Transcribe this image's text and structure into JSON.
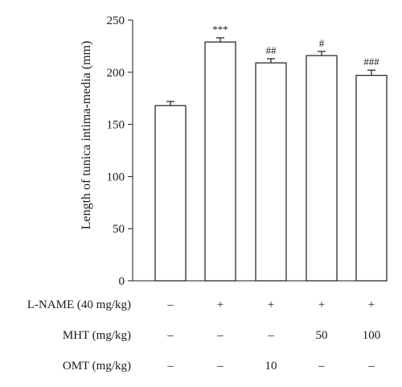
{
  "chart_data": {
    "type": "bar",
    "ylabel": "Length of tunica intima-media (mm)",
    "ylim": [
      0,
      250
    ],
    "yticks": [
      0,
      50,
      100,
      150,
      200,
      250
    ],
    "values": [
      168,
      229,
      209,
      216,
      197
    ],
    "errors": [
      4,
      4,
      4,
      4,
      5
    ],
    "significance": [
      "",
      "***",
      "##",
      "#",
      "###"
    ],
    "bar_fill": "#ffffff",
    "bar_stroke": "#1a1a1a",
    "treatment_table": [
      {
        "label": "L-NAME (40 mg/kg)",
        "values": [
          "–",
          "+",
          "+",
          "+",
          "+"
        ]
      },
      {
        "label": "MHT (mg/kg)",
        "values": [
          "–",
          "–",
          "–",
          "50",
          "100"
        ]
      },
      {
        "label": "OMT (mg/kg)",
        "values": [
          "–",
          "–",
          "10",
          "–",
          "–"
        ]
      }
    ]
  }
}
